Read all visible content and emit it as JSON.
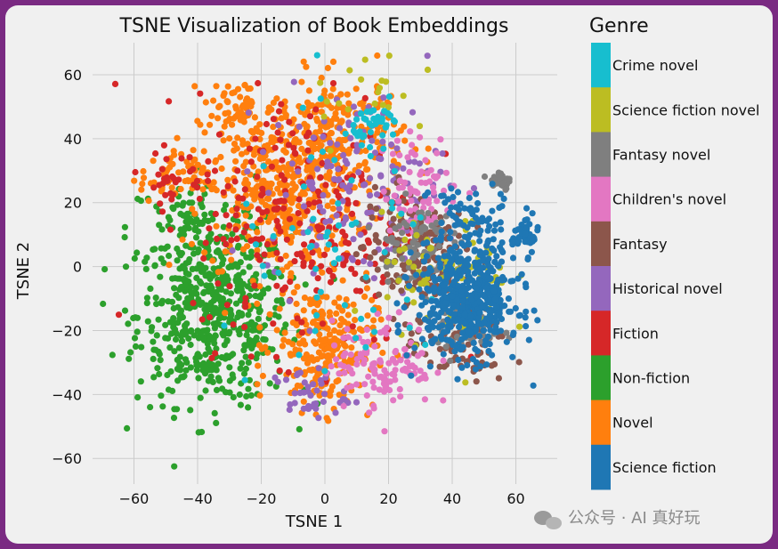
{
  "chart_data": {
    "type": "scatter",
    "title": "TSNE Visualization of Book Embeddings",
    "xlabel": "TSNE 1",
    "ylabel": "TSNE 2",
    "xlim": [
      -73,
      73
    ],
    "ylim": [
      -68,
      70
    ],
    "xticks": [
      -60,
      -40,
      -20,
      0,
      20,
      40,
      60
    ],
    "yticks": [
      -60,
      -40,
      -20,
      0,
      20,
      40,
      60
    ],
    "grid": true,
    "legend_title": "Genre",
    "legend_type": "colorbar",
    "series": [
      {
        "name": "Science fiction",
        "color": "#1f77b4",
        "clusters": [
          {
            "center": [
              45,
              -10
            ],
            "spread": [
              8,
              9
            ],
            "count": 520
          },
          {
            "center": [
              63,
              10
            ],
            "spread": [
              2,
              3
            ],
            "count": 40
          },
          {
            "center": [
              45,
              15
            ],
            "spread": [
              6,
              6
            ],
            "count": 60
          }
        ]
      },
      {
        "name": "Novel",
        "color": "#ff7f0e",
        "clusters": [
          {
            "center": [
              -15,
              25
            ],
            "spread": [
              12,
              14
            ],
            "count": 420
          },
          {
            "center": [
              5,
              40
            ],
            "spread": [
              10,
              10
            ],
            "count": 200
          },
          {
            "center": [
              0,
              -25
            ],
            "spread": [
              8,
              10
            ],
            "count": 250
          },
          {
            "center": [
              -48,
              28
            ],
            "spread": [
              5,
              4
            ],
            "count": 50
          },
          {
            "center": [
              -28,
              50
            ],
            "spread": [
              5,
              4
            ],
            "count": 40
          }
        ]
      },
      {
        "name": "Non-fiction",
        "color": "#2ca02c",
        "clusters": [
          {
            "center": [
              -35,
              -15
            ],
            "spread": [
              12,
              14
            ],
            "count": 560
          },
          {
            "center": [
              -42,
              12
            ],
            "spread": [
              10,
              8
            ],
            "count": 90
          }
        ]
      },
      {
        "name": "Fiction",
        "color": "#d62728",
        "clusters": [
          {
            "center": [
              -5,
              15
            ],
            "spread": [
              18,
              20
            ],
            "count": 260
          },
          {
            "center": [
              -48,
              28
            ],
            "spread": [
              5,
              4
            ],
            "count": 30
          }
        ]
      },
      {
        "name": "Historical novel",
        "color": "#9467bd",
        "clusters": [
          {
            "center": [
              10,
              25
            ],
            "spread": [
              14,
              15
            ],
            "count": 150
          },
          {
            "center": [
              -5,
              -40
            ],
            "spread": [
              6,
              4
            ],
            "count": 40
          }
        ]
      },
      {
        "name": "Fantasy",
        "color": "#8c564b",
        "clusters": [
          {
            "center": [
              28,
              5
            ],
            "spread": [
              8,
              10
            ],
            "count": 180
          },
          {
            "center": [
              42,
              -25
            ],
            "spread": [
              8,
              6
            ],
            "count": 70
          }
        ]
      },
      {
        "name": "Children's novel",
        "color": "#e377c2",
        "clusters": [
          {
            "center": [
              18,
              -30
            ],
            "spread": [
              8,
              7
            ],
            "count": 120
          },
          {
            "center": [
              30,
              25
            ],
            "spread": [
              6,
              8
            ],
            "count": 70
          }
        ]
      },
      {
        "name": "Fantasy novel",
        "color": "#7f7f7f",
        "clusters": [
          {
            "center": [
              28,
              8
            ],
            "spread": [
              6,
              6
            ],
            "count": 80
          },
          {
            "center": [
              55,
              27
            ],
            "spread": [
              2,
              2
            ],
            "count": 25
          },
          {
            "center": [
              45,
              -20
            ],
            "spread": [
              5,
              4
            ],
            "count": 40
          }
        ]
      },
      {
        "name": "Science fiction novel",
        "color": "#bcbd22",
        "clusters": [
          {
            "center": [
              38,
              -5
            ],
            "spread": [
              10,
              10
            ],
            "count": 80
          },
          {
            "center": [
              15,
              55
            ],
            "spread": [
              10,
              8
            ],
            "count": 20
          }
        ]
      },
      {
        "name": "Crime novel",
        "color": "#17becf",
        "clusters": [
          {
            "center": [
              17,
              45
            ],
            "spread": [
              4,
              3
            ],
            "count": 40
          },
          {
            "center": [
              5,
              0
            ],
            "spread": [
              18,
              20
            ],
            "count": 60
          }
        ]
      }
    ],
    "colorbar_order": [
      "Crime novel",
      "Science fiction novel",
      "Fantasy novel",
      "Children's novel",
      "Fantasy",
      "Historical novel",
      "Fiction",
      "Non-fiction",
      "Novel",
      "Science fiction"
    ]
  },
  "watermark": "公众号 · AI 真好玩"
}
